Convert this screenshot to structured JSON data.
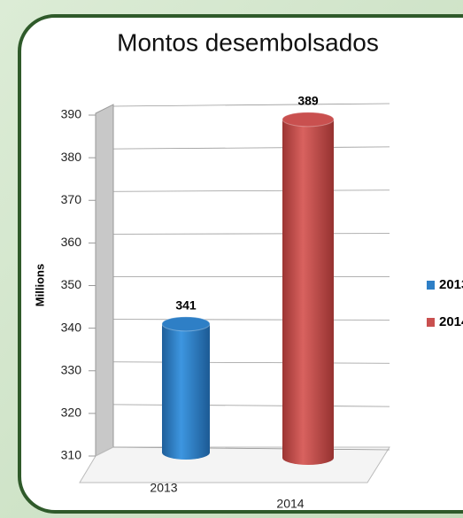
{
  "chart_data": {
    "type": "bar3d",
    "title": "Montos desembolsados",
    "ylabel": "Millions",
    "categories": [
      "2013",
      "2014"
    ],
    "values": [
      341,
      389
    ],
    "colors": [
      "#2e7fc6",
      "#c9504f"
    ],
    "ylim": [
      310,
      390
    ],
    "yticks": [
      310,
      320,
      330,
      340,
      350,
      360,
      370,
      380,
      390
    ],
    "grid": true,
    "legend": "right"
  }
}
